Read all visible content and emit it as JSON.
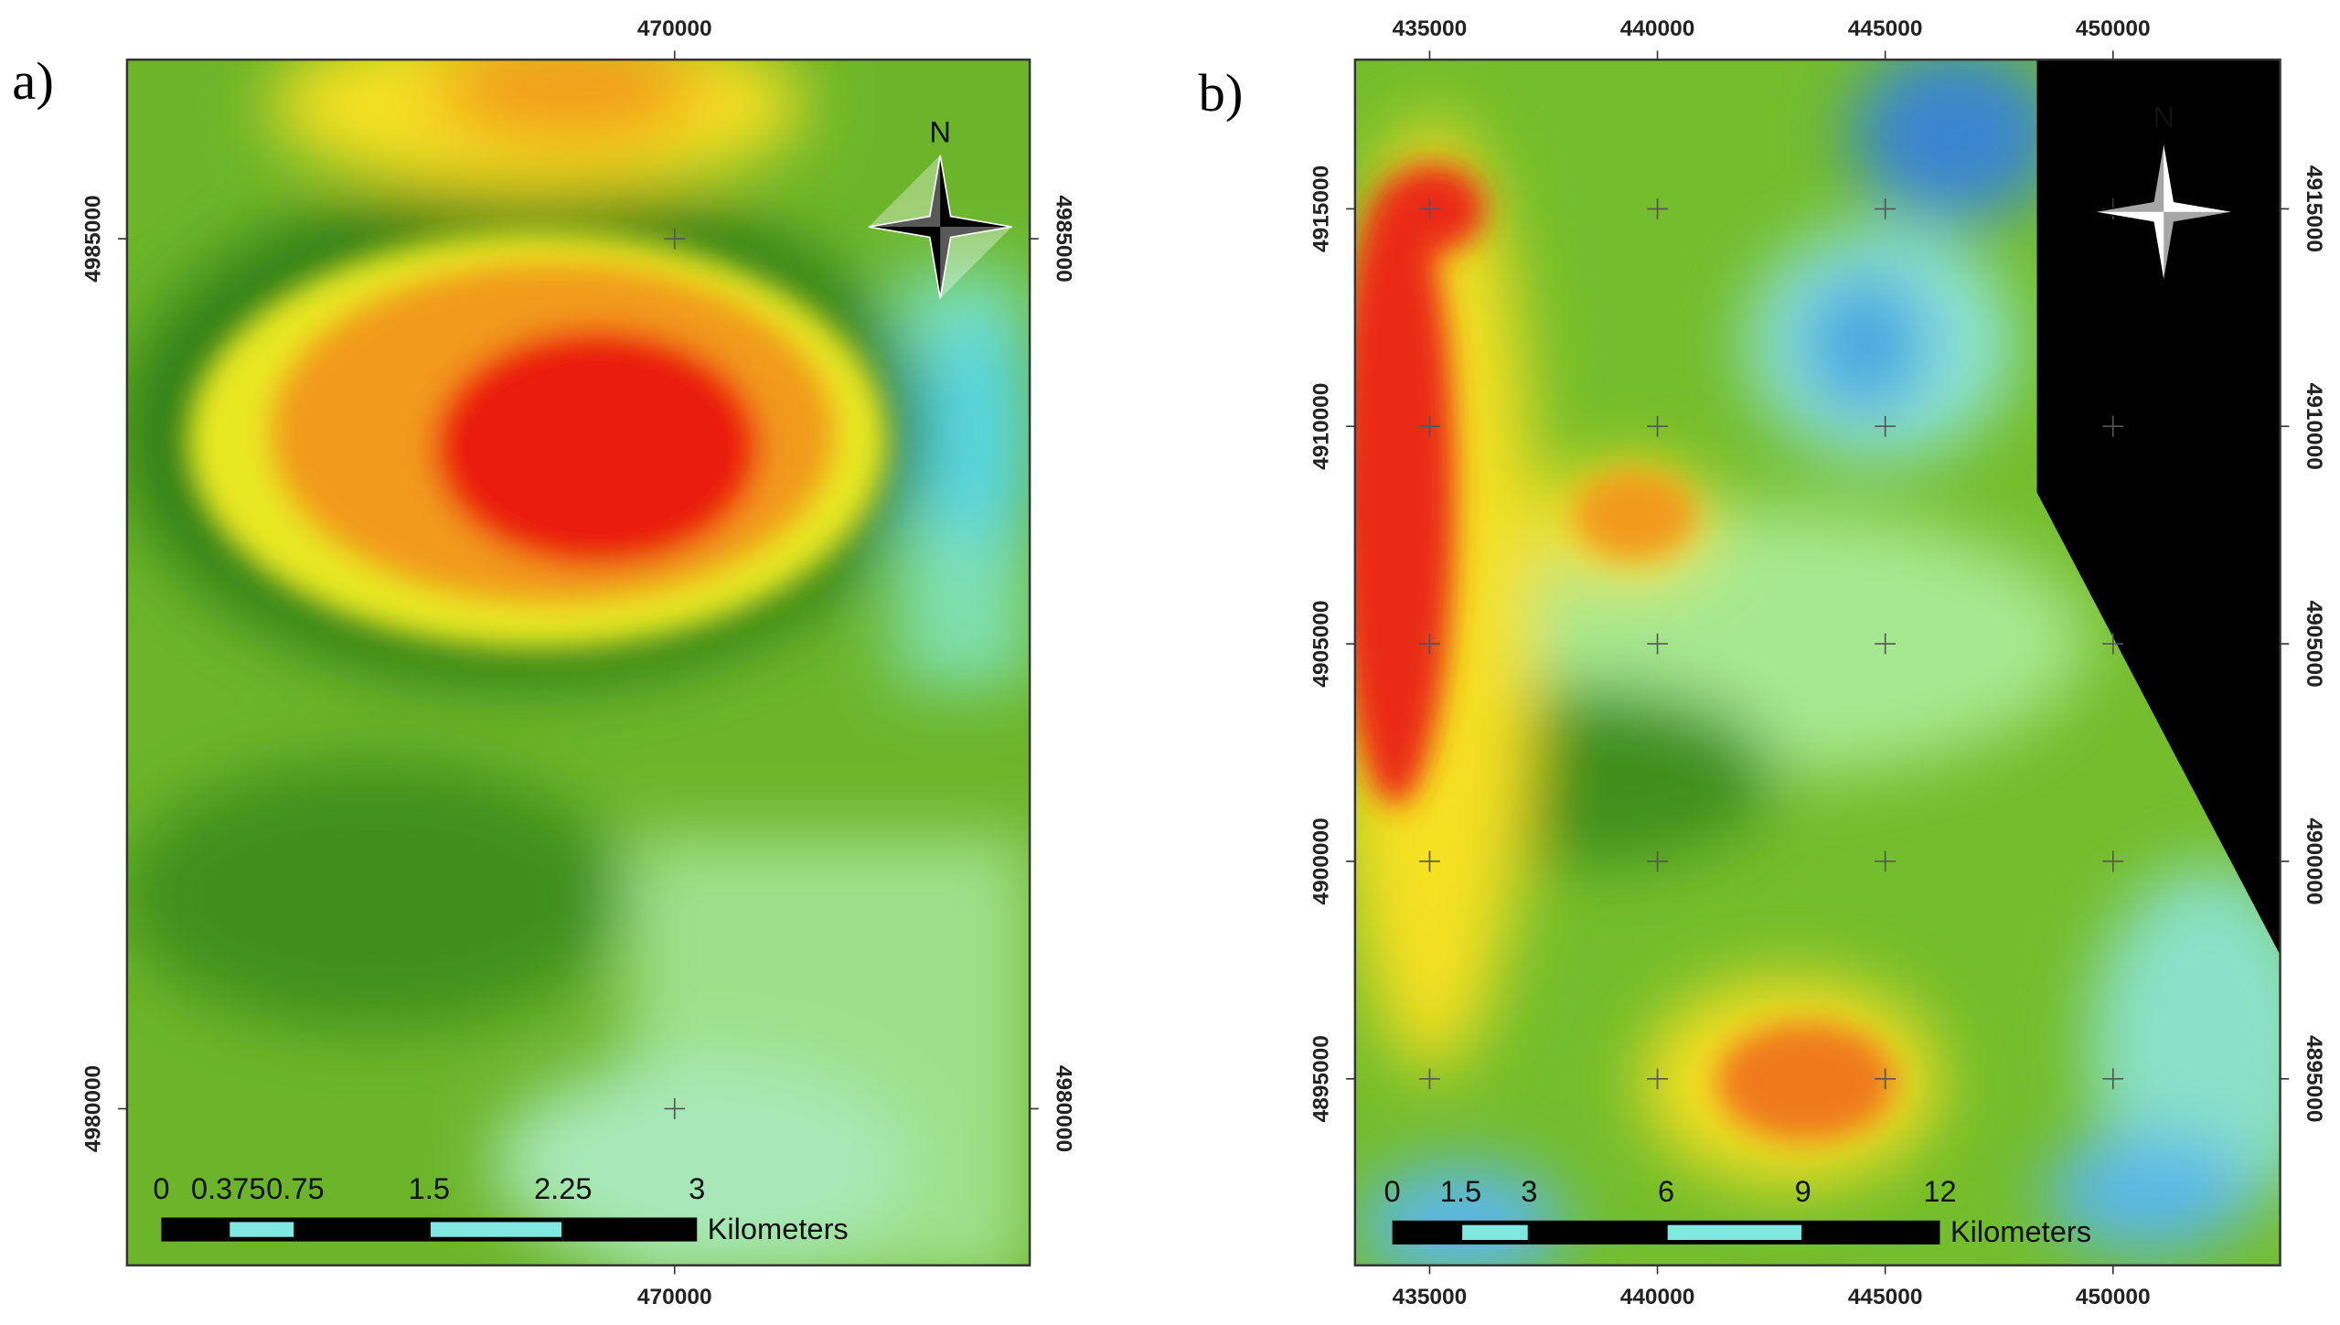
{
  "maps": [
    {
      "label": "a)",
      "north": "N",
      "xlim": [
        466853,
        472041
      ],
      "ylim": [
        4979100,
        4986029
      ],
      "xticks": [
        470000
      ],
      "yticks": [
        4985000,
        4980000
      ],
      "scale_bar": {
        "labels": [
          0,
          0.375,
          0.75,
          1.5,
          2.25,
          3
        ],
        "unit": "Kilometers"
      }
    },
    {
      "label": "b)",
      "north": "N",
      "xlim": [
        433362,
        453668
      ],
      "ylim": [
        4890713,
        4918429
      ],
      "xticks": [
        435000,
        440000,
        445000,
        450000
      ],
      "yticks": [
        4915000,
        4910000,
        4905000,
        4900000,
        4895000
      ],
      "scale_bar": {
        "labels": [
          0,
          1.5,
          3,
          6,
          9,
          12
        ],
        "unit": "Kilometers"
      }
    }
  ]
}
